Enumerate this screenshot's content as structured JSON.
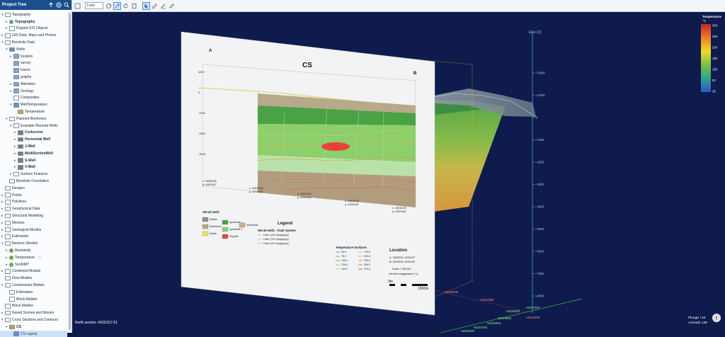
{
  "panel": {
    "title": "Project Tree",
    "icons": [
      "up-arrow-icon",
      "pause-icon",
      "search-icon"
    ]
  },
  "toolbar": {
    "look_label": "Look",
    "icons": [
      "pin-icon",
      "select-icon",
      "rotate-icon",
      "layers-icon",
      "pointer-icon",
      "edit-icon",
      "pencil-icon",
      "ruler-icon"
    ]
  },
  "tree": [
    {
      "label": "Topography",
      "level": 0,
      "state": "open",
      "icon": "folder"
    },
    {
      "label": "Topography",
      "level": 1,
      "state": "closed",
      "icon": "topo",
      "bold": true
    },
    {
      "label": "Draped GIS Objects",
      "level": 1,
      "state": "closed",
      "icon": "folder"
    },
    {
      "label": "GIS Data, Maps and Photos",
      "level": 0,
      "state": "closed",
      "icon": "folder"
    },
    {
      "label": "Borehole Data",
      "level": 0,
      "state": "open",
      "icon": "folder"
    },
    {
      "label": "Wells",
      "level": 1,
      "state": "open",
      "icon": "well"
    },
    {
      "label": "location",
      "level": 2,
      "state": "closed",
      "icon": "table"
    },
    {
      "label": "survey",
      "level": 2,
      "state": "none",
      "icon": "table"
    },
    {
      "label": "traces",
      "level": 2,
      "state": "none",
      "icon": "table"
    },
    {
      "label": "graphs",
      "level": 2,
      "state": "none",
      "icon": "table"
    },
    {
      "label": "Alteration",
      "level": 2,
      "state": "closed",
      "icon": "table"
    },
    {
      "label": "Geology",
      "level": 2,
      "state": "closed",
      "icon": "table"
    },
    {
      "label": "Composites",
      "level": 2,
      "state": "none",
      "icon": "folder"
    },
    {
      "label": "WellTemperature",
      "level": 2,
      "state": "open",
      "icon": "well"
    },
    {
      "label": "Temperature",
      "level": 3,
      "state": "none",
      "icon": "temp"
    },
    {
      "label": "Planned Boreholes",
      "level": 1,
      "state": "open",
      "icon": "folder"
    },
    {
      "label": "Example Planned Wells",
      "level": 2,
      "state": "open",
      "icon": "folder"
    },
    {
      "label": "Corkscrew",
      "level": 3,
      "state": "closed",
      "icon": "drill",
      "bold": true
    },
    {
      "label": "Horizontal Well",
      "level": 3,
      "state": "closed",
      "icon": "drill",
      "bold": true
    },
    {
      "label": "J-Well",
      "level": 3,
      "state": "closed",
      "icon": "drill",
      "bold": true
    },
    {
      "label": "MultiSectionWell",
      "level": 3,
      "state": "closed",
      "icon": "drill",
      "bold": true
    },
    {
      "label": "S-Well",
      "level": 3,
      "state": "closed",
      "icon": "drill",
      "bold": true
    },
    {
      "label": "V-Well",
      "level": 3,
      "state": "closed",
      "icon": "drill",
      "bold": true
    },
    {
      "label": "Surface Features",
      "level": 2,
      "state": "closed",
      "icon": "folder"
    },
    {
      "label": "Borehole Correlation",
      "level": 1,
      "state": "none",
      "icon": "folder"
    },
    {
      "label": "Designs",
      "level": 0,
      "state": "none",
      "icon": "folder"
    },
    {
      "label": "Points",
      "level": 0,
      "state": "closed",
      "icon": "folder"
    },
    {
      "label": "Polylines",
      "level": 0,
      "state": "closed",
      "icon": "folder"
    },
    {
      "label": "Geophysical Data",
      "level": 0,
      "state": "closed",
      "icon": "folder"
    },
    {
      "label": "Structural Modelling",
      "level": 0,
      "state": "closed",
      "icon": "folder"
    },
    {
      "label": "Meshes",
      "level": 0,
      "state": "closed",
      "icon": "folder"
    },
    {
      "label": "Geological Models",
      "level": 0,
      "state": "closed",
      "icon": "folder"
    },
    {
      "label": "Estimation",
      "level": 0,
      "state": "closed",
      "icon": "folder"
    },
    {
      "label": "Numeric Models",
      "level": 0,
      "state": "open",
      "icon": "folder"
    },
    {
      "label": "Resistivity",
      "level": 1,
      "state": "closed",
      "icon": "numeric"
    },
    {
      "label": "Temperature",
      "level": 1,
      "state": "closed",
      "icon": "numeric",
      "comment": true
    },
    {
      "label": "SynthMT",
      "level": 1,
      "state": "closed",
      "icon": "numeric"
    },
    {
      "label": "Combined Models",
      "level": 0,
      "state": "closed",
      "icon": "folder"
    },
    {
      "label": "Flow Models",
      "level": 0,
      "state": "none",
      "icon": "folder"
    },
    {
      "label": "Contaminant Models",
      "level": 0,
      "state": "open",
      "icon": "folder"
    },
    {
      "label": "Estimation",
      "level": 1,
      "state": "none",
      "icon": "folder"
    },
    {
      "label": "Block Models",
      "level": 1,
      "state": "none",
      "icon": "folder"
    },
    {
      "label": "Block Models",
      "level": 0,
      "state": "none",
      "icon": "folder"
    },
    {
      "label": "Saved Scenes and Movies",
      "level": 0,
      "state": "closed",
      "icon": "folder"
    },
    {
      "label": "Cross Sections and Contours",
      "level": 0,
      "state": "open",
      "icon": "folder"
    },
    {
      "label": "CS",
      "level": 1,
      "state": "open",
      "icon": "cs",
      "bold": true
    },
    {
      "label": "CS Layout",
      "level": 2,
      "state": "none",
      "icon": "layout",
      "selected": true
    }
  ],
  "colors": {
    "header": "#1b4e8c",
    "scene_bg": "#0f1b4d",
    "axis": "#3ea7d8",
    "selection": "#cfe1f8"
  },
  "scene": {
    "north_label": "North section +6331157.51",
    "elev_label": "Elev (Z)",
    "plunge": "Plunge +10",
    "azimuth": "Azimuth 139",
    "elev_ticks": [
      "+2000",
      "+1000",
      "0",
      "-1000",
      "-2000",
      "-3000",
      "-4000",
      "-5000",
      "-6000",
      "-7000",
      "-8000"
    ],
    "easting_labels": [
      "+2816000",
      "+2814000",
      "+2812000"
    ],
    "northing_labels": [
      "+6327000",
      "+6326000",
      "+6329000",
      "+6330000",
      "+6331000",
      "+6332000"
    ]
  },
  "legend_bar": {
    "title": "Temperature",
    "unit": "°C",
    "ticks": [
      "300",
      "250",
      "200",
      "150",
      "100",
      "50",
      "35"
    ]
  },
  "layout": {
    "title": "CS",
    "label_a": "A",
    "label_b": "B",
    "y_ticks": [
      "1000",
      "0",
      "-1000",
      "-2000",
      "-3000"
    ],
    "coords": [
      {
        "x": "x: 2828226",
        "y": "y: 6331167"
      },
      {
        "x": "x: 2825226",
        "y": "y: 6331162"
      },
      {
        "x": "x: 2822226",
        "y": "y: 6331158"
      },
      {
        "x": "x: 2819226",
        "y": "y: 6331154"
      },
      {
        "x": "x: 2816226",
        "y": "y: 6331150"
      }
    ],
    "gm_title": "GM all wells",
    "units": [
      "Mistuis",
      "Sandstone",
      "Dacite",
      "Ignimbrite 1",
      "Ignimbrite 2",
      "Rhyolite",
      "Sediments"
    ],
    "legend_title": "Legend",
    "fault_title": "GM all wells - Fault System",
    "fault_items": [
      "Fault 1 (On Topography)",
      "Fault 2 (On Topography)",
      "Fault 3 (On Topography)"
    ],
    "temp_title": "Temperature Surfaces",
    "temp_values": [
      "50.0",
      "75.0",
      "100.0",
      "125.0",
      "150.0",
      "175.0",
      "200.0",
      "225.0",
      "250.0",
      "275.0"
    ],
    "location_title": "Location",
    "loc_a": "A: 2828226, 6331167",
    "loc_b": "B: 2815226, 6331150",
    "scale": "Scale: 1:56,000",
    "vex": "Vertical exaggeration: 1x",
    "sb_start": "0m",
    "sb_end": "1500m"
  }
}
